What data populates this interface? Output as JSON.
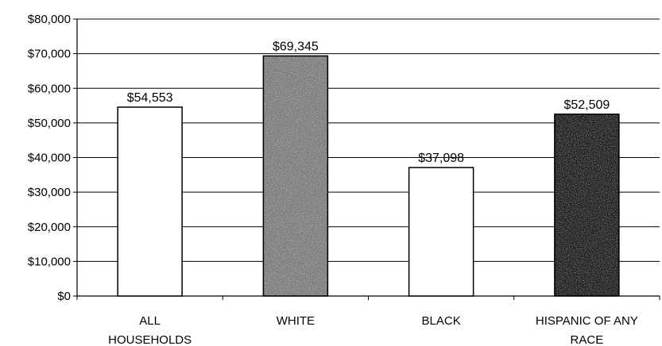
{
  "chart_data": {
    "type": "bar",
    "categories": [
      [
        "ALL",
        "HOUSEHOLDS"
      ],
      [
        "WHITE"
      ],
      [
        "BLACK"
      ],
      [
        "HISPANIC OF ANY",
        "RACE"
      ]
    ],
    "values": [
      54553,
      69345,
      37098,
      52509
    ],
    "value_labels": [
      "$54,553",
      "$69,345",
      "$37,098",
      "$52,509"
    ],
    "bar_fills": [
      "#ffffff",
      "#7a7a7a",
      "#ffffff",
      "#1e1e1e"
    ],
    "title": "",
    "xlabel": "",
    "ylabel": "",
    "ylim": [
      0,
      80000
    ],
    "yticks": [
      0,
      10000,
      20000,
      30000,
      40000,
      50000,
      60000,
      70000,
      80000
    ],
    "ytick_labels": [
      "$0",
      "$10,000",
      "$20,000",
      "$30,000",
      "$40,000",
      "$50,000",
      "$60,000",
      "$70,000",
      "$80,000"
    ],
    "grid": true,
    "legend": "none"
  }
}
